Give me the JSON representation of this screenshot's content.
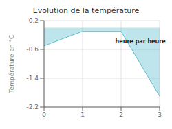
{
  "chart_data": {
    "type": "area",
    "title": "Evolution de la température",
    "ylabel": "Température en °C",
    "x": [
      0,
      1,
      2,
      3
    ],
    "values": [
      -0.5,
      -0.1,
      -0.1,
      -1.9
    ],
    "color": "#5bbece",
    "xlim": [
      0,
      3
    ],
    "ylim": [
      -2.2,
      0.2
    ],
    "xticks": [
      0,
      1,
      2,
      3
    ],
    "yticks": [
      0.2,
      -0.6,
      -1.4,
      -2.2
    ],
    "grid": true,
    "annotations": [
      {
        "text": "heure par heure",
        "x": 1.85,
        "y": -0.38
      }
    ]
  }
}
